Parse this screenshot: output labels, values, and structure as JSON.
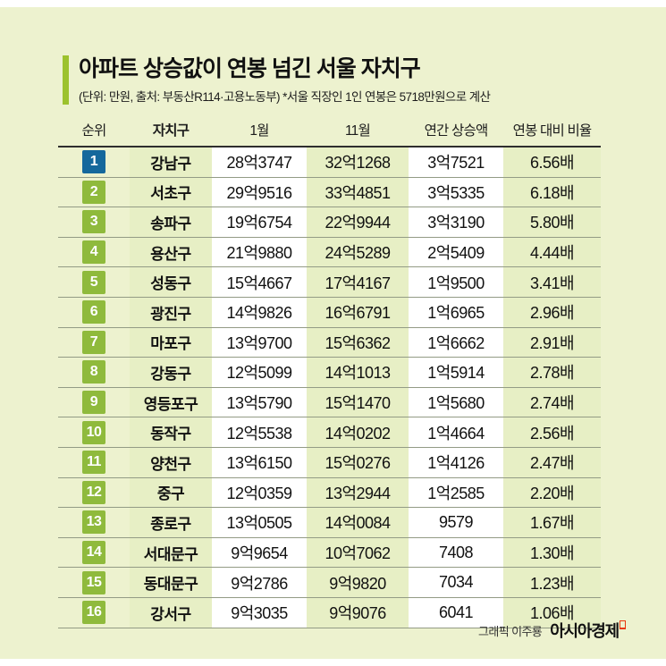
{
  "colors": {
    "panel_bg": "#edf2cf",
    "band_green": "#e7efc5",
    "band_white": "#ffffff",
    "accent_bar": "#9cc22e",
    "rank1_badge": "#15689c",
    "rank_badge": "#8fba3c",
    "row_line": "#939b85",
    "header_line": "#2e2e2e",
    "brand_red": "#e8380d"
  },
  "header": {
    "title": "아파트 상승값이 연봉 넘긴 서울 자치구",
    "subtitle": "(단위: 만원, 출처: 부동산R114·고용노동부) *서울 직장인 1인 연봉은 5718만원으로 계산"
  },
  "chart_data": {
    "type": "table",
    "title": "아파트 상승값이 연봉 넘긴 서울 자치구",
    "note": "(단위: 만원, 출처: 부동산R114·고용노동부) *서울 직장인 1인 연봉은 5718만원으로 계산",
    "columns": [
      "순위",
      "자치구",
      "1월",
      "11월",
      "연간 상승액",
      "연봉 대비 비율"
    ],
    "rows": [
      {
        "rank": "1",
        "district": "강남구",
        "jan": "28억3747",
        "nov": "32억1268",
        "annual": "3억7521",
        "ratio": "6.56배"
      },
      {
        "rank": "2",
        "district": "서초구",
        "jan": "29억9516",
        "nov": "33억4851",
        "annual": "3억5335",
        "ratio": "6.18배"
      },
      {
        "rank": "3",
        "district": "송파구",
        "jan": "19억6754",
        "nov": "22억9944",
        "annual": "3억3190",
        "ratio": "5.80배"
      },
      {
        "rank": "4",
        "district": "용산구",
        "jan": "21억9880",
        "nov": "24억5289",
        "annual": "2억5409",
        "ratio": "4.44배"
      },
      {
        "rank": "5",
        "district": "성동구",
        "jan": "15억4667",
        "nov": "17억4167",
        "annual": "1억9500",
        "ratio": "3.41배"
      },
      {
        "rank": "6",
        "district": "광진구",
        "jan": "14억9826",
        "nov": "16억6791",
        "annual": "1억6965",
        "ratio": "2.96배"
      },
      {
        "rank": "7",
        "district": "마포구",
        "jan": "13억9700",
        "nov": "15억6362",
        "annual": "1억6662",
        "ratio": "2.91배"
      },
      {
        "rank": "8",
        "district": "강동구",
        "jan": "12억5099",
        "nov": "14억1013",
        "annual": "1억5914",
        "ratio": "2.78배"
      },
      {
        "rank": "9",
        "district": "영등포구",
        "jan": "13억5790",
        "nov": "15억1470",
        "annual": "1억5680",
        "ratio": "2.74배"
      },
      {
        "rank": "10",
        "district": "동작구",
        "jan": "12억5538",
        "nov": "14억0202",
        "annual": "1억4664",
        "ratio": "2.56배"
      },
      {
        "rank": "11",
        "district": "양천구",
        "jan": "13억6150",
        "nov": "15억0276",
        "annual": "1억4126",
        "ratio": "2.47배"
      },
      {
        "rank": "12",
        "district": "중구",
        "jan": "12억0359",
        "nov": "13억2944",
        "annual": "1억2585",
        "ratio": "2.20배"
      },
      {
        "rank": "13",
        "district": "종로구",
        "jan": "13억0505",
        "nov": "14억0084",
        "annual": "9579",
        "ratio": "1.67배"
      },
      {
        "rank": "14",
        "district": "서대문구",
        "jan": "9억9654",
        "nov": "10억7062",
        "annual": "7408",
        "ratio": "1.30배"
      },
      {
        "rank": "15",
        "district": "동대문구",
        "jan": "9억2786",
        "nov": "9억9820",
        "annual": "7034",
        "ratio": "1.23배"
      },
      {
        "rank": "16",
        "district": "강서구",
        "jan": "9억3035",
        "nov": "9억9076",
        "annual": "6041",
        "ratio": "1.06배"
      }
    ]
  },
  "footer": {
    "credit": "그래픽 이주룡",
    "brand": "아시아경제"
  }
}
